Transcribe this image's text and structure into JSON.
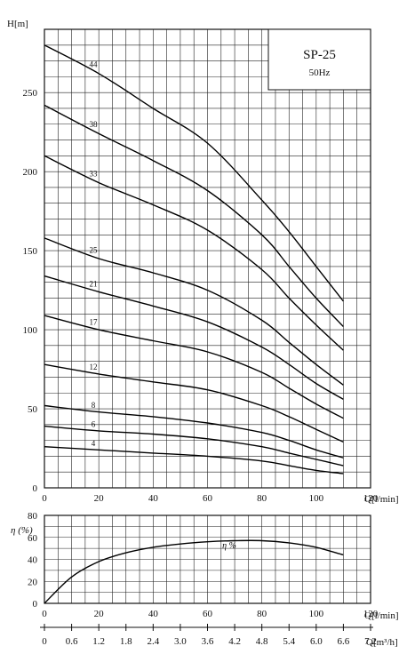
{
  "chart_data": [
    {
      "type": "line",
      "title": "SP-25",
      "subtitle": "50Hz",
      "xlabel": "Q[l/min]",
      "ylabel": "H[m]",
      "xlim": [
        0,
        120
      ],
      "ylim": [
        0,
        290
      ],
      "x_ticks": [
        0,
        20,
        40,
        60,
        80,
        100,
        120
      ],
      "y_ticks": [
        0,
        50,
        100,
        150,
        200,
        250
      ],
      "grid": true,
      "series": [
        {
          "name": "44",
          "x": [
            0,
            20,
            40,
            60,
            80,
            90,
            100,
            110
          ],
          "y": [
            280,
            262,
            240,
            218,
            182,
            162,
            140,
            118
          ]
        },
        {
          "name": "38",
          "x": [
            0,
            20,
            40,
            60,
            80,
            90,
            100,
            110
          ],
          "y": [
            242,
            224,
            207,
            188,
            160,
            140,
            120,
            102
          ]
        },
        {
          "name": "33",
          "x": [
            0,
            20,
            40,
            60,
            80,
            90,
            100,
            110
          ],
          "y": [
            210,
            193,
            179,
            163,
            138,
            120,
            103,
            87
          ]
        },
        {
          "name": "25",
          "x": [
            0,
            20,
            40,
            60,
            80,
            90,
            100,
            110
          ],
          "y": [
            158,
            145,
            136,
            125,
            106,
            92,
            78,
            65
          ]
        },
        {
          "name": "21",
          "x": [
            0,
            20,
            40,
            60,
            80,
            90,
            100,
            110
          ],
          "y": [
            134,
            124,
            115,
            105,
            89,
            78,
            66,
            56
          ]
        },
        {
          "name": "17",
          "x": [
            0,
            20,
            40,
            60,
            80,
            90,
            100,
            110
          ],
          "y": [
            109,
            100,
            93,
            86,
            73,
            63,
            53,
            44
          ]
        },
        {
          "name": "12",
          "x": [
            0,
            20,
            40,
            60,
            80,
            90,
            100,
            110
          ],
          "y": [
            78,
            72,
            67,
            62,
            52,
            45,
            37,
            29
          ]
        },
        {
          "name": "8",
          "x": [
            0,
            20,
            40,
            60,
            80,
            90,
            100,
            110
          ],
          "y": [
            52,
            48,
            45,
            41,
            35,
            30,
            24,
            19
          ]
        },
        {
          "name": "6",
          "x": [
            0,
            20,
            40,
            60,
            80,
            90,
            100,
            110
          ],
          "y": [
            39,
            36,
            34,
            31,
            26,
            22,
            18,
            14
          ]
        },
        {
          "name": "4",
          "x": [
            0,
            20,
            40,
            60,
            80,
            90,
            100,
            110
          ],
          "y": [
            26,
            24,
            22,
            20,
            17,
            14,
            11,
            9
          ]
        }
      ]
    },
    {
      "type": "line",
      "xlabel": "Q[l/min]",
      "ylabel": "η (%)",
      "xlim": [
        0,
        120
      ],
      "ylim": [
        0,
        80
      ],
      "x_ticks": [
        0,
        20,
        40,
        60,
        80,
        100,
        120
      ],
      "y_ticks": [
        0,
        20,
        40,
        60,
        80
      ],
      "grid": true,
      "series": [
        {
          "name": "η %",
          "x": [
            0,
            10,
            20,
            30,
            40,
            50,
            60,
            70,
            80,
            90,
            100,
            110
          ],
          "y": [
            0,
            24,
            38,
            46,
            51,
            54,
            56,
            57,
            57,
            55,
            51,
            44
          ]
        }
      ]
    },
    {
      "type": "axis",
      "xlabel": "Q[m³/h]",
      "xlim": [
        0,
        7.2
      ],
      "x_ticks": [
        "0",
        "0.6",
        "1.2",
        "1.8",
        "2.4",
        "3.0",
        "3.6",
        "4.2",
        "4.8",
        "5.4",
        "6.0",
        "6.6",
        "7.2"
      ]
    }
  ]
}
